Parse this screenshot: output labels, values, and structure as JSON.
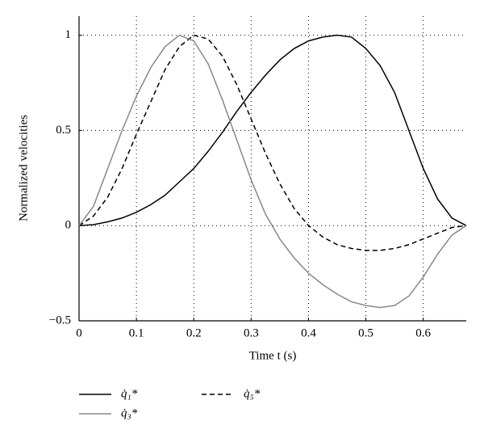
{
  "chart_data": {
    "type": "line",
    "x_label": "Time t (s)",
    "y_label": "Normalized velocities",
    "x": [
      0,
      0.025,
      0.05,
      0.075,
      0.1,
      0.125,
      0.15,
      0.175,
      0.2,
      0.225,
      0.25,
      0.275,
      0.3,
      0.325,
      0.35,
      0.375,
      0.4,
      0.425,
      0.45,
      0.475,
      0.5,
      0.525,
      0.55,
      0.575,
      0.6,
      0.625,
      0.65,
      0.675
    ],
    "series": [
      {
        "name": "q̇₁*",
        "color": "#000000",
        "dash": "solid",
        "values": [
          0,
          0.005,
          0.02,
          0.04,
          0.07,
          0.11,
          0.16,
          0.23,
          0.3,
          0.39,
          0.49,
          0.6,
          0.7,
          0.79,
          0.87,
          0.93,
          0.97,
          0.99,
          1.0,
          0.99,
          0.93,
          0.84,
          0.7,
          0.5,
          0.3,
          0.14,
          0.04,
          0
        ]
      },
      {
        "name": "q̇₅*",
        "color": "#000000",
        "dash": "dashed",
        "values": [
          0,
          0.05,
          0.15,
          0.3,
          0.48,
          0.65,
          0.82,
          0.94,
          1.0,
          0.98,
          0.89,
          0.74,
          0.56,
          0.38,
          0.22,
          0.09,
          0.0,
          -0.06,
          -0.1,
          -0.12,
          -0.13,
          -0.13,
          -0.12,
          -0.1,
          -0.07,
          -0.04,
          -0.01,
          0
        ]
      },
      {
        "name": "q̇₃*",
        "color": "#888888",
        "dash": "solid",
        "values": [
          0,
          0.1,
          0.3,
          0.5,
          0.68,
          0.83,
          0.94,
          1.0,
          0.97,
          0.85,
          0.66,
          0.45,
          0.24,
          0.06,
          -0.07,
          -0.17,
          -0.25,
          -0.31,
          -0.36,
          -0.4,
          -0.42,
          -0.43,
          -0.42,
          -0.37,
          -0.27,
          -0.15,
          -0.05,
          0
        ]
      }
    ],
    "xlim": [
      0,
      0.675
    ],
    "ylim": [
      -0.5,
      1.1
    ],
    "xticks": [
      0,
      0.1,
      0.2,
      0.3,
      0.4,
      0.5,
      0.6
    ],
    "yticks": [
      {
        "value": -0.5,
        "label": "−0.5"
      },
      0,
      0.5,
      1
    ],
    "grid": true,
    "legend": "bottom"
  }
}
